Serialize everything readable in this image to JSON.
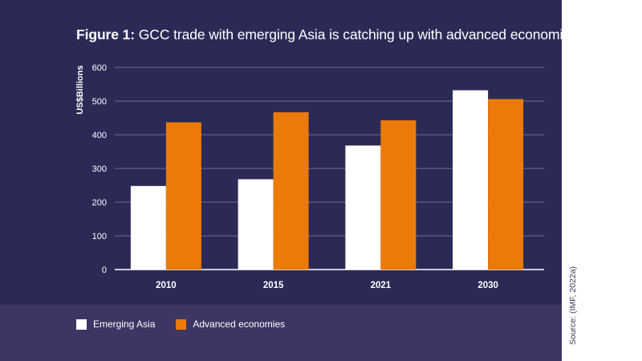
{
  "figure_label": "Figure 1:",
  "title_text": "GCC trade with emerging Asia is catching up with advanced economies",
  "source": "Source: (IMF, 2022a)",
  "colors": {
    "background": "#2b2a56",
    "legend_band": "#3d3563",
    "emerging_asia": "#ffffff",
    "advanced_economies": "#ec7a08"
  },
  "chart_data": {
    "type": "bar",
    "categories": [
      "2010",
      "2015",
      "2021",
      "2030"
    ],
    "series": [
      {
        "name": "Emerging Asia",
        "values": [
          248,
          268,
          368,
          532
        ]
      },
      {
        "name": "Advanced economies",
        "values": [
          437,
          467,
          443,
          506
        ]
      }
    ],
    "ylabel": "US$Billions",
    "xlabel": "",
    "ylim": [
      0,
      600
    ],
    "yticks": [
      "0",
      "100",
      "200",
      "300",
      "400",
      "500",
      "600"
    ],
    "grid": true,
    "legend_position": "bottom-left"
  }
}
